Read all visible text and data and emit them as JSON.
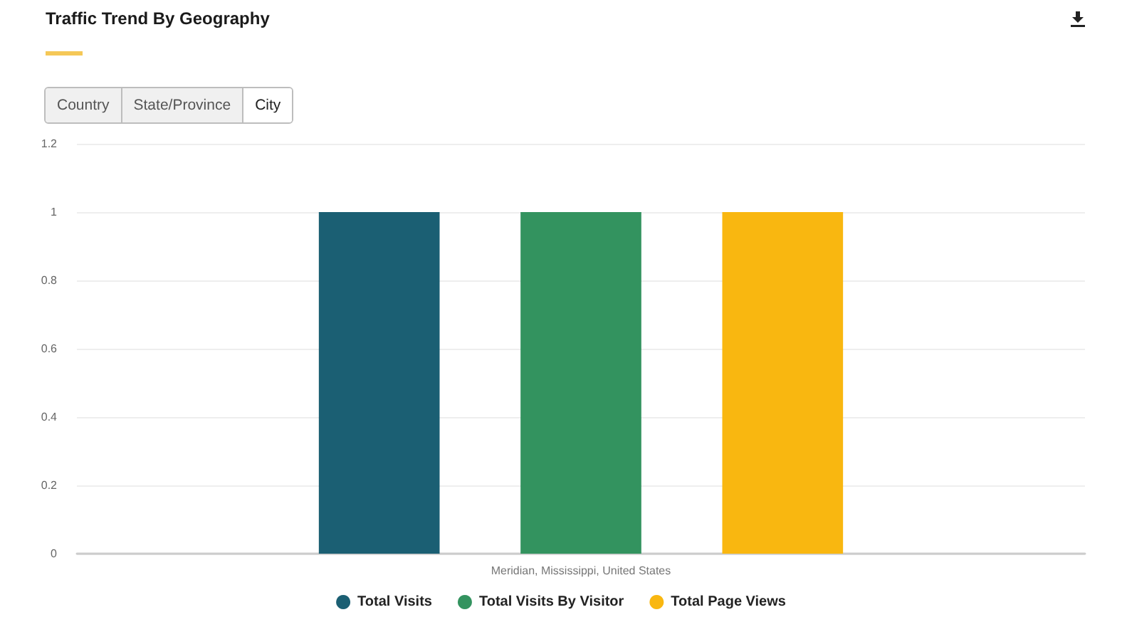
{
  "chart_data": {
    "type": "bar",
    "title": "Traffic Trend By Geography",
    "annotations": [
      "Country",
      "State/Province",
      "City"
    ],
    "categories": [
      "Meridian, Mississippi, United States"
    ],
    "series": [
      {
        "name": "Total Visits",
        "color": "#1b5f73",
        "values": [
          1
        ]
      },
      {
        "name": "Total Visits By Visitor",
        "color": "#33935f",
        "values": [
          1
        ]
      },
      {
        "name": "Total Page Views",
        "color": "#f9b710",
        "values": [
          1
        ]
      }
    ],
    "ylim": [
      0,
      1.2
    ],
    "yticks": [
      0,
      0.2,
      0.4,
      0.6,
      0.8,
      1,
      1.2
    ],
    "grid": "y",
    "legend": "bottom"
  }
}
